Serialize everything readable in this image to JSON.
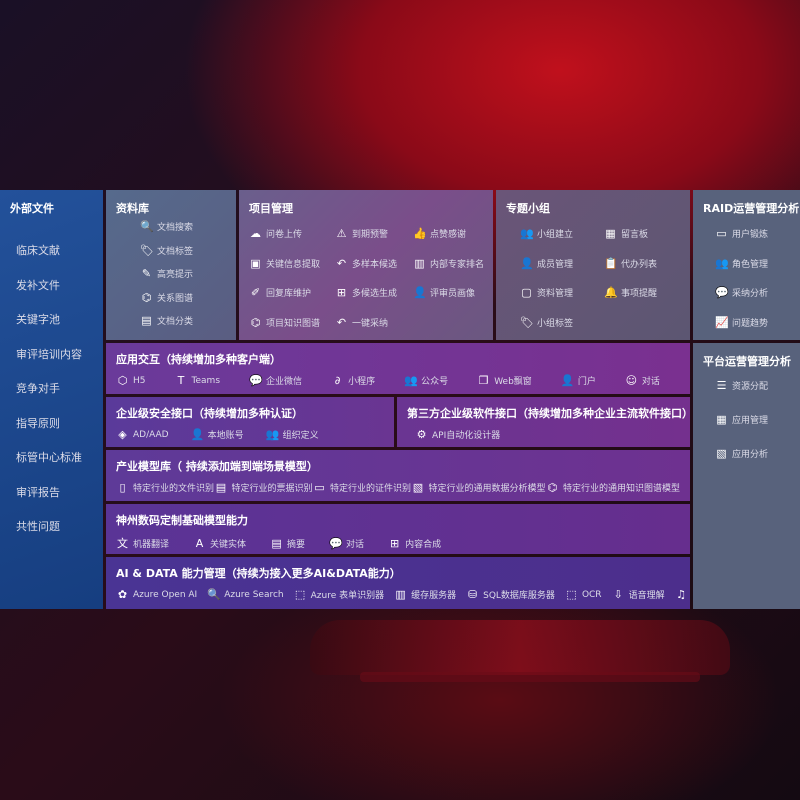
{
  "sidebar": {
    "title": "外部文件",
    "items": [
      "临床文献",
      "发补文件",
      "关键字池",
      "审评培训内容",
      "竞争对手",
      "指导原则",
      "标管中心标准",
      "审评报告",
      "共性问题"
    ]
  },
  "library": {
    "title": "资料库",
    "items": [
      {
        "icon": "doc-search-icon",
        "g": "🔍",
        "label": "文档搜索"
      },
      {
        "icon": "tag-icon",
        "g": "🏷",
        "label": "文档标签"
      },
      {
        "icon": "pen-icon",
        "g": "✎",
        "label": "高亮提示"
      },
      {
        "icon": "graph-icon",
        "g": "⌬",
        "label": "关系图谱"
      },
      {
        "icon": "doc-category-icon",
        "g": "▤",
        "label": "文档分类"
      }
    ]
  },
  "project": {
    "title": "项目管理",
    "items": [
      {
        "icon": "cloud-upload-icon",
        "g": "☁",
        "label": "问卷上传"
      },
      {
        "icon": "alarm-icon",
        "g": "⚠",
        "label": "到期预警"
      },
      {
        "icon": "thumbs-up-icon",
        "g": "👍",
        "label": "点赞感谢"
      },
      {
        "icon": "extract-icon",
        "g": "▣",
        "label": "关键信息提取"
      },
      {
        "icon": "reply-icon",
        "g": "↶",
        "label": "多样本候选"
      },
      {
        "icon": "rank-icon",
        "g": "▥",
        "label": "内部专家排名"
      },
      {
        "icon": "edit-icon",
        "g": "✐",
        "label": "回复库维护"
      },
      {
        "icon": "puzzle-icon",
        "g": "⊞",
        "label": "多候选生成"
      },
      {
        "icon": "user-icon",
        "g": "👤",
        "label": "评审员画像"
      },
      {
        "icon": "knowledge-graph-icon",
        "g": "⌬",
        "label": "项目知识图谱"
      },
      {
        "icon": "reply-icon",
        "g": "↶",
        "label": "一键采纳"
      }
    ]
  },
  "group": {
    "title": "专题小组",
    "items": [
      {
        "icon": "group-icon",
        "g": "👥",
        "label": "小组建立"
      },
      {
        "icon": "bbs-icon",
        "g": "▦",
        "label": "留言板"
      },
      {
        "icon": "add-user-icon",
        "g": "👤",
        "label": "成员管理"
      },
      {
        "icon": "clipboard-icon",
        "g": "📋",
        "label": "代办列表"
      },
      {
        "icon": "folder-icon",
        "g": "▢",
        "label": "资料管理"
      },
      {
        "icon": "bell-icon",
        "g": "🔔",
        "label": "事项提醒"
      },
      {
        "icon": "tag-icon",
        "g": "🏷",
        "label": "小组标签"
      }
    ]
  },
  "raid": {
    "title": "RAID运营管理分析",
    "items": [
      {
        "icon": "id-card-icon",
        "g": "▭",
        "label": "用户锻炼"
      },
      {
        "icon": "users-icon",
        "g": "👥",
        "label": "角色管理"
      },
      {
        "icon": "qa-icon",
        "g": "💬",
        "label": "采纳分析"
      },
      {
        "icon": "trend-icon",
        "g": "📈",
        "label": "问题趋势"
      }
    ]
  },
  "platform": {
    "title": "平台运营管理分析",
    "items": [
      {
        "icon": "checklist-icon",
        "g": "☰",
        "label": "资源分配"
      },
      {
        "icon": "apps-icon",
        "g": "▦",
        "label": "应用管理"
      },
      {
        "icon": "analysis-icon",
        "g": "▧",
        "label": "应用分析"
      }
    ]
  },
  "interaction": {
    "title": "应用交互（持续增加多种客户端）",
    "items": [
      {
        "icon": "html5-icon",
        "g": "⬡",
        "label": "H5"
      },
      {
        "icon": "teams-icon",
        "g": "T",
        "label": "Teams"
      },
      {
        "icon": "wecom-icon",
        "g": "💬",
        "label": "企业微信"
      },
      {
        "icon": "miniprogram-icon",
        "g": "∂",
        "label": "小程序"
      },
      {
        "icon": "official-account-icon",
        "g": "👥",
        "label": "公众号"
      },
      {
        "icon": "window-icon",
        "g": "❐",
        "label": "Web飘窗"
      },
      {
        "icon": "portal-icon",
        "g": "👤",
        "label": "门户"
      },
      {
        "icon": "chat-icon",
        "g": "☺",
        "label": "对话"
      }
    ]
  },
  "security": {
    "title": "企业级安全接口（持续增加多种认证）",
    "items": [
      {
        "icon": "aad-icon",
        "g": "◈",
        "label": "AD/AAD"
      },
      {
        "icon": "local-account-icon",
        "g": "👤",
        "label": "本地账号"
      },
      {
        "icon": "org-icon",
        "g": "👥",
        "label": "组织定义"
      }
    ]
  },
  "thirdparty": {
    "title": "第三方企业级软件接口（持续增加多种企业主流软件接口）",
    "items": [
      {
        "icon": "gear-icon",
        "g": "⚙",
        "label": "API自动化设计器"
      }
    ]
  },
  "industry": {
    "title": "产业模型库（ 持续添加端到端场景模型）",
    "items": [
      {
        "icon": "file-icon",
        "g": "▯",
        "label": "特定行业的文件识别"
      },
      {
        "icon": "receipt-icon",
        "g": "▤",
        "label": "特定行业的票据识别"
      },
      {
        "icon": "id-card-icon",
        "g": "▭",
        "label": "特定行业的证件识别"
      },
      {
        "icon": "chart-icon",
        "g": "▧",
        "label": "特定行业的通用数据分析模型"
      },
      {
        "icon": "knowledge-graph-icon",
        "g": "⌬",
        "label": "特定行业的通用知识图谱模型"
      }
    ]
  },
  "base": {
    "title": "神州数码定制基础模型能力",
    "items": [
      {
        "icon": "translate-icon",
        "g": "文",
        "label": "机器翻译"
      },
      {
        "icon": "entity-icon",
        "g": "A",
        "label": "关键实体"
      },
      {
        "icon": "summary-icon",
        "g": "▤",
        "label": "摘要"
      },
      {
        "icon": "chat-icon",
        "g": "💬",
        "label": "对话"
      },
      {
        "icon": "compose-icon",
        "g": "⊞",
        "label": "内容合成"
      }
    ]
  },
  "aidata": {
    "title": "AI & DATA 能力管理（持续为接入更多AI&DATA能力）",
    "items": [
      {
        "icon": "openai-icon",
        "g": "✿",
        "label": "Azure Open AI"
      },
      {
        "icon": "search-icon",
        "g": "🔍",
        "label": "Azure Search"
      },
      {
        "icon": "form-recognizer-icon",
        "g": "⬚",
        "label": "Azure 表单识别器"
      },
      {
        "icon": "cache-server-icon",
        "g": "▥",
        "label": "缓存服务器"
      },
      {
        "icon": "sql-icon",
        "g": "⛁",
        "label": "SQL数据库服务器"
      },
      {
        "icon": "ocr-icon",
        "g": "⬚",
        "label": "OCR"
      },
      {
        "icon": "speech-icon",
        "g": "⇩",
        "label": "语音理解"
      },
      {
        "icon": "tts-icon",
        "g": "♫",
        "label": "TTS"
      }
    ]
  },
  "colors": {
    "sidebar": "#1f4a8c",
    "library": "#4f6282",
    "project": "#6b5384",
    "group": "#5f5274",
    "raid": "#58627c",
    "interaction": "#6a3596",
    "aidata": "#4a3192"
  }
}
